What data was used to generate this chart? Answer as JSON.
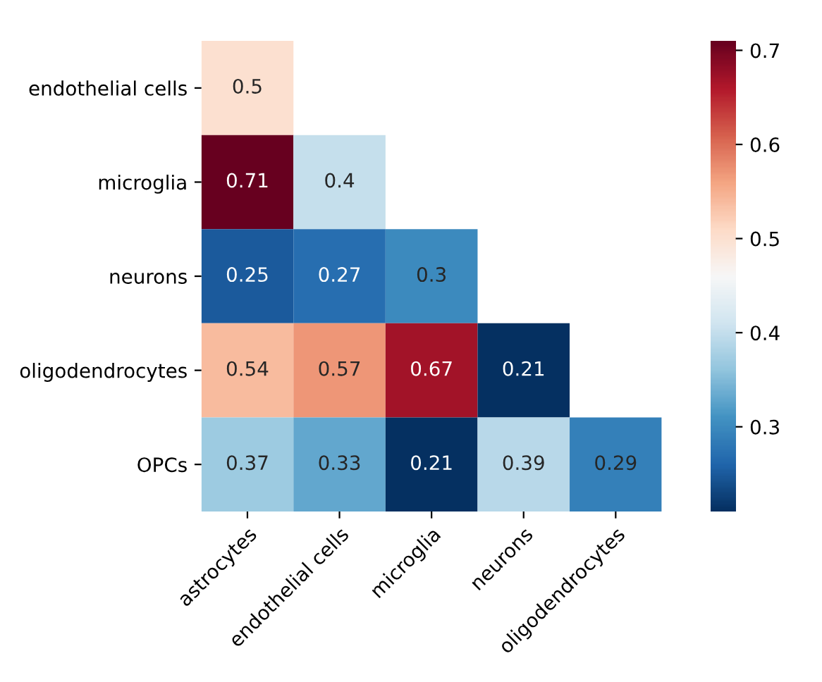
{
  "chart_data": {
    "type": "heatmap",
    "categories": [
      "astrocytes",
      "endothelial cells",
      "microglia",
      "neurons",
      "oligodendrocytes"
    ],
    "y_categories": [
      "endothelial cells",
      "microglia",
      "neurons",
      "oligodendrocytes",
      "OPCs"
    ],
    "cells": [
      [
        0.5,
        null,
        null,
        null,
        null
      ],
      [
        0.71,
        0.4,
        null,
        null,
        null
      ],
      [
        0.25,
        0.27,
        0.3,
        null,
        null
      ],
      [
        0.54,
        0.57,
        0.67,
        0.21,
        null
      ],
      [
        0.37,
        0.33,
        0.21,
        0.39,
        0.29
      ]
    ],
    "clim": [
      0.21,
      0.71
    ],
    "cticks": [
      0.3,
      0.4,
      0.5,
      0.6,
      0.7
    ],
    "data_labels": true
  }
}
